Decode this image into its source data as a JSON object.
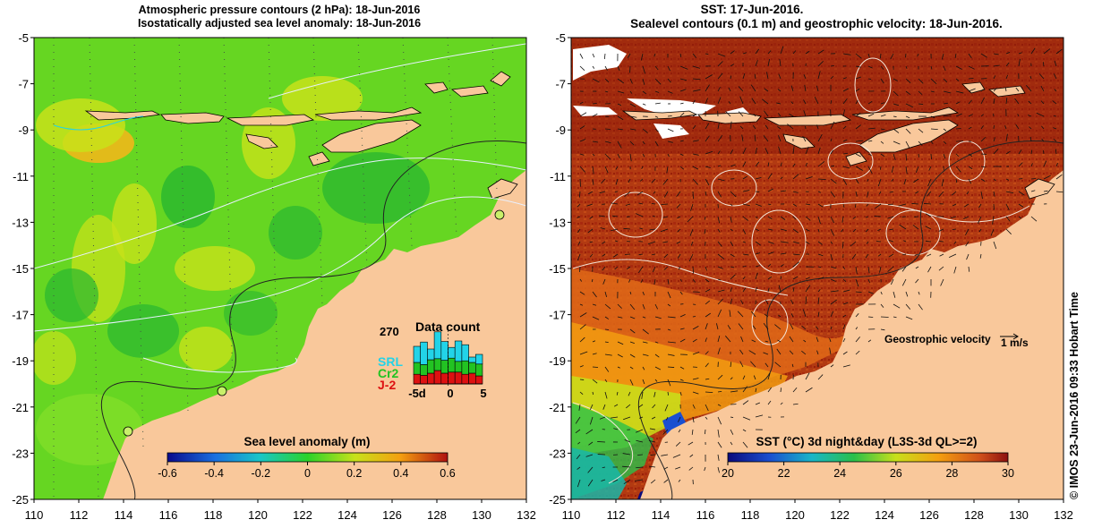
{
  "left_panel": {
    "title_line1": "Atmospheric pressure contours (2 hPa): 18-Jun-2016",
    "title_line2": "Isostatically adjusted sea level anomaly: 18-Jun-2016",
    "colorbar": {
      "label": "Sea level anomaly (m)",
      "ticks": [
        "-0.6",
        "-0.4",
        "-0.2",
        "0",
        "0.2",
        "0.4",
        "0.6"
      ]
    },
    "data_count": {
      "title": "Data count",
      "max_label": "270",
      "x_ticks": [
        "-5d",
        "0",
        "5"
      ],
      "legend": [
        {
          "name": "SRL",
          "color": "#22d3e8"
        },
        {
          "name": "Cr2",
          "color": "#22c322"
        },
        {
          "name": "J-2",
          "color": "#dd1111"
        }
      ],
      "bars": [
        {
          "SRL": 0.3,
          "Cr2": 0.22,
          "J-2": 0.18
        },
        {
          "SRL": 0.42,
          "Cr2": 0.2,
          "J-2": 0.16
        },
        {
          "SRL": 0.2,
          "Cr2": 0.25,
          "J-2": 0.2
        },
        {
          "SRL": 0.5,
          "Cr2": 0.22,
          "J-2": 0.25
        },
        {
          "SRL": 0.35,
          "Cr2": 0.24,
          "J-2": 0.2
        },
        {
          "SRL": 0.2,
          "Cr2": 0.26,
          "J-2": 0.22
        },
        {
          "SRL": 0.38,
          "Cr2": 0.2,
          "J-2": 0.22
        },
        {
          "SRL": 0.3,
          "Cr2": 0.25,
          "J-2": 0.18
        },
        {
          "SRL": 0.1,
          "Cr2": 0.2,
          "J-2": 0.2
        },
        {
          "SRL": 0.18,
          "Cr2": 0.22,
          "J-2": 0.15
        }
      ]
    }
  },
  "right_panel": {
    "title_line1": "SST: 17-Jun-2016.",
    "title_line2": "Sealevel contours (0.1 m) and geostrophic velocity: 18-Jun-2016.",
    "velocity_legend": {
      "label": "Geostrophic velocity",
      "scale": "1 m/s"
    },
    "colorbar": {
      "label": "SST (°C) 3d night&day (L3S-3d QL>=2)",
      "ticks": [
        "20",
        "22",
        "24",
        "26",
        "28",
        "30"
      ]
    }
  },
  "axes": {
    "x_ticks": [
      "110",
      "112",
      "114",
      "116",
      "118",
      "120",
      "122",
      "124",
      "126",
      "128",
      "130",
      "132"
    ],
    "y_ticks": [
      "-5",
      "-7",
      "-9",
      "-11",
      "-13",
      "-15",
      "-17",
      "-19",
      "-21",
      "-23",
      "-25"
    ],
    "xlim": [
      110,
      132
    ],
    "ylim": [
      -25,
      -5
    ]
  },
  "credit": "© IMOS 23-Jun-2016 09:33 Hobart Time",
  "colors": {
    "land": "#f9c89b",
    "sla_base": "#66d622",
    "sst_base": "#b53510"
  }
}
